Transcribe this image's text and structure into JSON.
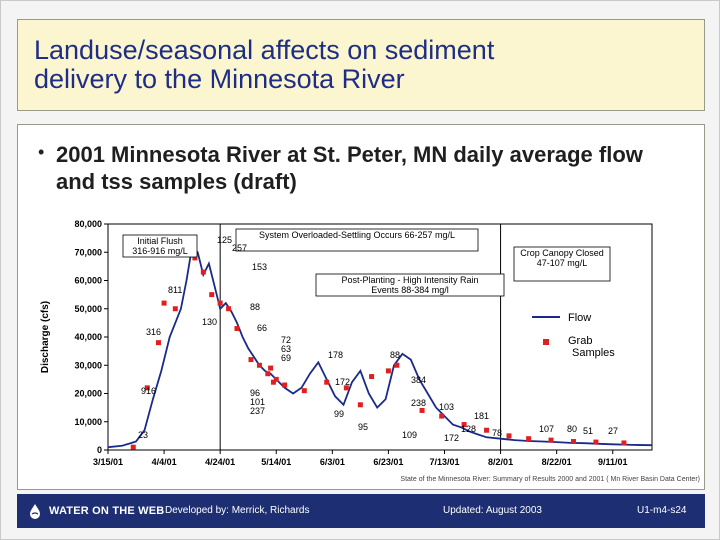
{
  "slide": {
    "title": "Landuse/seasonal affects on sediment\ndelivery to the Minnesota River",
    "bullet": "2001 Minnesota River at St. Peter, MN daily average flow and tss samples (draft)",
    "source": "State of the Minnesota River: Summary of Results 2000 and 2001 ( Mn River Basin Data Center)"
  },
  "footer": {
    "logo_text": "WATER ON THE WEB",
    "developed_by": "Developed by: Merrick, Richards",
    "updated": "Updated: August 2003",
    "slide_id": "U1-m4-s24",
    "colors": {
      "background": "#1d2f72",
      "text": "#ffffff"
    }
  },
  "chart_data": {
    "type": "line",
    "ylabel": "Discharge (cfs)",
    "ylim": [
      0,
      80000
    ],
    "yticks": [
      0,
      10000,
      20000,
      30000,
      40000,
      50000,
      60000,
      70000,
      80000
    ],
    "ytick_labels": [
      "0",
      "10,000",
      "20,000",
      "30,000",
      "40,000",
      "50,000",
      "60,000",
      "70,000",
      "80,000"
    ],
    "xtick_labels": [
      "3/15/01",
      "4/4/01",
      "4/24/01",
      "5/14/01",
      "6/3/01",
      "6/23/01",
      "7/13/01",
      "8/2/01",
      "8/22/01",
      "9/11/01"
    ],
    "xlim": [
      "3/15/01",
      "9/25/01"
    ],
    "grid": false,
    "legend_position": "right",
    "legend": [
      {
        "name": "Flow",
        "marker": "line",
        "color": "#1a2a8a"
      },
      {
        "name": "Grab Samples",
        "marker": "square",
        "color": "#e02020"
      }
    ],
    "series": [
      {
        "name": "Flow",
        "color": "#1a2a8a",
        "x": [
          "3/15/01",
          "3/20/01",
          "3/25/01",
          "3/28/01",
          "3/31/01",
          "4/3/01",
          "4/6/01",
          "4/8/01",
          "4/10/01",
          "4/12/01",
          "4/14/01",
          "4/16/01",
          "4/18/01",
          "4/20/01",
          "4/22/01",
          "4/24/01",
          "4/26/01",
          "4/28/01",
          "4/30/01",
          "5/2/01",
          "5/4/01",
          "5/6/01",
          "5/8/01",
          "5/10/01",
          "5/12/01",
          "5/14/01",
          "5/17/01",
          "5/20/01",
          "5/23/01",
          "5/26/01",
          "5/29/01",
          "6/1/01",
          "6/4/01",
          "6/7/01",
          "6/10/01",
          "6/13/01",
          "6/16/01",
          "6/19/01",
          "6/22/01",
          "6/25/01",
          "6/28/01",
          "7/1/01",
          "7/4/01",
          "7/7/01",
          "7/10/01",
          "7/13/01",
          "7/16/01",
          "7/19/01",
          "7/22/01",
          "7/25/01",
          "7/28/01",
          "8/2/01",
          "8/7/01",
          "8/12/01",
          "8/17/01",
          "8/22/01",
          "8/27/01",
          "9/1/01",
          "9/6/01",
          "9/11/01",
          "9/18/01",
          "9/25/01"
        ],
        "values": [
          1000,
          1500,
          3000,
          7000,
          18000,
          28000,
          40000,
          45000,
          50000,
          60000,
          72000,
          70000,
          62000,
          66000,
          58000,
          50000,
          52000,
          49000,
          45000,
          40000,
          36000,
          33000,
          30000,
          28000,
          27000,
          25000,
          22000,
          20000,
          22000,
          27000,
          31000,
          25000,
          19000,
          16000,
          24000,
          28000,
          20000,
          15000,
          18000,
          30000,
          34000,
          32000,
          25000,
          20000,
          15000,
          12000,
          9000,
          8000,
          6500,
          5500,
          4500,
          4000,
          3500,
          3200,
          3000,
          2800,
          2500,
          2400,
          2200,
          2000,
          1800,
          1700
        ]
      },
      {
        "name": "Grab Samples",
        "color": "#e02020",
        "x": [
          "3/24/01",
          "3/29/01",
          "4/2/01",
          "4/4/01",
          "4/8/01",
          "4/15/01",
          "4/18/01",
          "4/21/01",
          "4/24/01",
          "4/27/01",
          "4/30/01",
          "5/5/01",
          "5/8/01",
          "5/11/01",
          "5/12/01",
          "5/13/01",
          "5/14/01",
          "5/17/01",
          "5/24/01",
          "6/1/01",
          "6/8/01",
          "6/13/01",
          "6/17/01",
          "6/23/01",
          "6/26/01",
          "7/5/01",
          "7/12/01",
          "7/20/01",
          "7/28/01",
          "8/5/01",
          "8/12/01",
          "8/20/01",
          "8/28/01",
          "9/5/01",
          "9/15/01"
        ],
        "values": [
          1000,
          22000,
          38000,
          52000,
          50000,
          68000,
          63000,
          55000,
          52000,
          50000,
          43000,
          32000,
          30000,
          27000,
          29000,
          24000,
          25000,
          23000,
          21000,
          24000,
          22000,
          16000,
          26000,
          28000,
          30000,
          14000,
          12000,
          9000,
          7000,
          5000,
          4000,
          3500,
          3000,
          2800,
          2500
        ]
      }
    ],
    "annotations": [
      "125",
      "257",
      "153",
      "811",
      "88",
      "130",
      "66",
      "316",
      "72",
      "63",
      "69",
      "178",
      "172",
      "88",
      "96",
      "101",
      "237",
      "916",
      "384",
      "99",
      "238",
      "103",
      "95",
      "181",
      "109",
      "172",
      "23",
      "128",
      "78",
      "107",
      "80",
      "51",
      "27"
    ],
    "callouts": [
      "Initial Flush 316-916 mg/L",
      "System Overloaded-Settling Occurs 66-257 mg/L",
      "Post-Planting - High Intensity Rain Events 88-384 mg/l",
      "Crop Canopy Closed 47-107 mg/L"
    ]
  }
}
